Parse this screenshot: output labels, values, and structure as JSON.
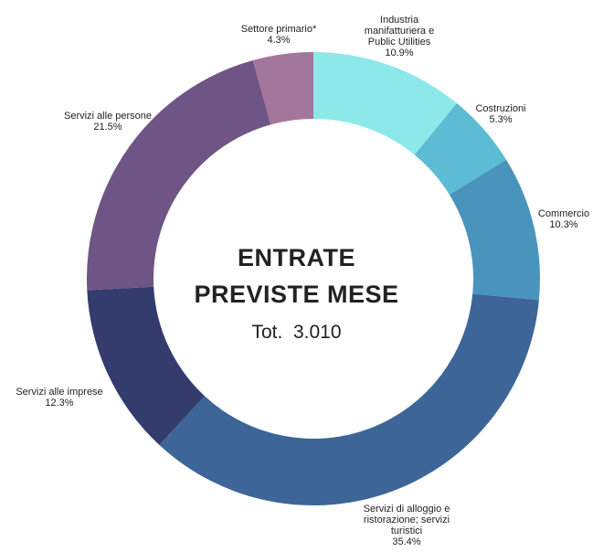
{
  "chart_data": {
    "type": "donut",
    "center_title": [
      "ENTRATE",
      "PREVISTE MESE"
    ],
    "center_subtitle": "Tot.  3.010",
    "categories": [
      "Industria manifatturiera e Public Utilities",
      "Costruzioni",
      "Commercio",
      "Servizi di alloggio e ristorazione; servizi turistici",
      "Servizi alle imprese",
      "Servizi alle persone",
      "Settore primario*"
    ],
    "values": [
      10.9,
      5.3,
      10.3,
      35.4,
      12.3,
      21.5,
      4.3
    ],
    "value_labels": [
      "10.9%",
      "5.3%",
      "10.3%",
      "35.4%",
      "12.3%",
      "21.5%",
      "4.3%"
    ],
    "colors": [
      "#8de9e9",
      "#5bbcd4",
      "#4894bd",
      "#3d6597",
      "#343c6e",
      "#6e5585",
      "#a3779c"
    ]
  }
}
